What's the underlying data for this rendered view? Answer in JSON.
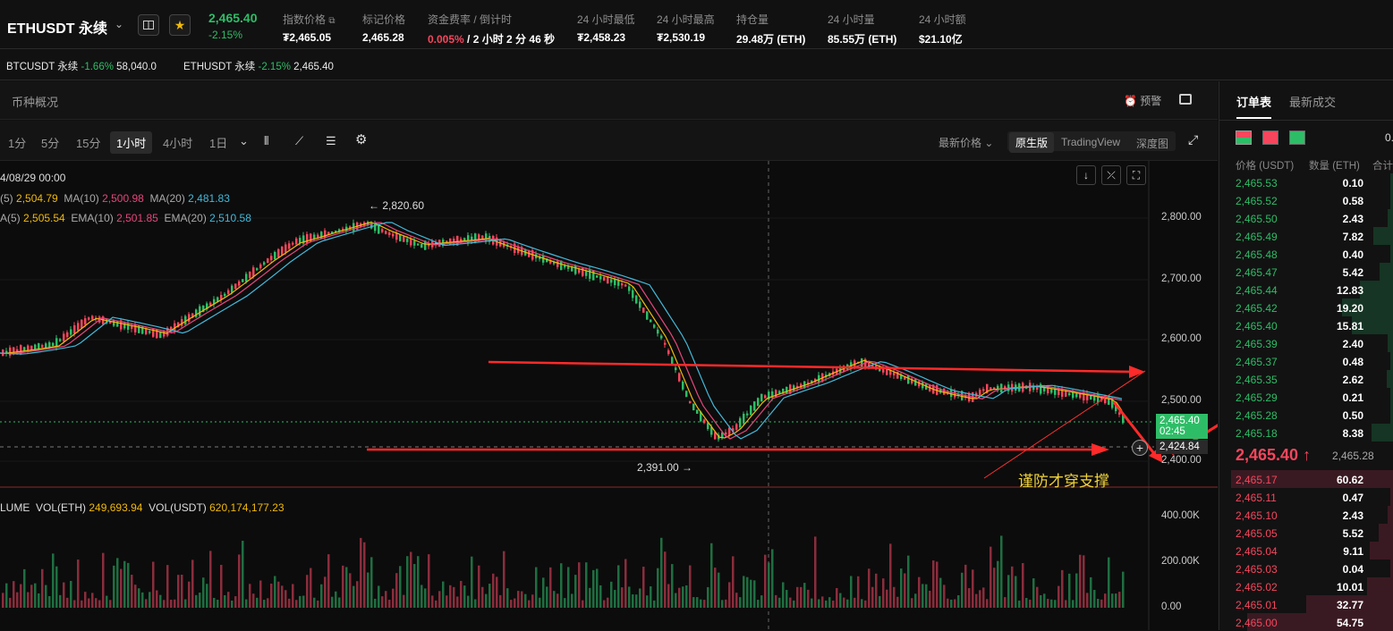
{
  "header": {
    "symbol": "ETHUSDT 永续",
    "last_price": "2,465.40",
    "change": "-2.15%",
    "stats": [
      {
        "label": "指数价格",
        "value": "₮2,465.05"
      },
      {
        "label": "标记价格",
        "value": "2,465.28"
      },
      {
        "label": "资金费率 / 倒计时",
        "value_rate": "0.005%",
        "value_rest": " / 2 小时 2 分 46 秒"
      },
      {
        "label": "24 小时最低",
        "value": "₮2,458.23"
      },
      {
        "label": "24 小时最高",
        "value": "₮2,530.19"
      },
      {
        "label": "持仓量",
        "value": "29.48万 (ETH)"
      },
      {
        "label": "24 小时量",
        "value": "85.55万 (ETH)"
      },
      {
        "label": "24 小时额",
        "value": "$21.10亿"
      }
    ]
  },
  "tickers": [
    {
      "name": "BTCUSDT 永续",
      "change": "-1.66%",
      "price": "58,040.0"
    },
    {
      "name": "ETHUSDT 永续",
      "change": "-2.15%",
      "price": "2,465.40"
    }
  ],
  "overview": {
    "title": "币种概况",
    "alert": "预警"
  },
  "toolbar": {
    "timeframes": [
      "1分",
      "5分",
      "15分",
      "1小时",
      "4小时",
      "1日"
    ],
    "price_mode": "最新价格",
    "views": [
      "原生版",
      "TradingView",
      "深度图"
    ]
  },
  "chart": {
    "date_label": "4/08/29 00:00",
    "ma": [
      {
        "label": "(5)",
        "value": "2,504.79",
        "color": "#f0b90b"
      },
      {
        "label": "MA(10)",
        "value": "2,500.98",
        "color": "#e6467c"
      },
      {
        "label": "MA(20)",
        "value": "2,481.83",
        "color": "#43b8d9"
      }
    ],
    "ema": [
      {
        "label": "A(5)",
        "value": "2,505.54",
        "color": "#f0b90b"
      },
      {
        "label": "EMA(10)",
        "value": "2,501.85",
        "color": "#e6467c"
      },
      {
        "label": "EMA(20)",
        "value": "2,510.58",
        "color": "#43b8d9"
      }
    ],
    "price_ticks": [
      "2,800.00",
      "2,700.00",
      "2,600.00",
      "2,500.00",
      "2,400.00"
    ],
    "high_marker": "2,820.60",
    "low_marker": "2,391.00",
    "current_price": "2,465.40",
    "countdown": "02:45",
    "hover_price": "2,424.84",
    "annotation": "谨防才穿支撑",
    "volume": {
      "label": "LUME",
      "vol_eth_label": "VOL(ETH)",
      "vol_eth": "249,693.94",
      "vol_usdt_label": "VOL(USDT)",
      "vol_usdt": "620,174,177.23"
    },
    "vol_ticks": [
      "400.00K",
      "200.00K",
      "0.00"
    ]
  },
  "orderbook": {
    "tabs": [
      "订单表",
      "最新成交"
    ],
    "top_right": "0.",
    "headers": [
      "价格 (USDT)",
      "数量 (ETH)",
      "合计"
    ],
    "asks": [
      [
        "2,465.53",
        "0.10"
      ],
      [
        "2,465.52",
        "0.58"
      ],
      [
        "2,465.50",
        "2.43"
      ],
      [
        "2,465.49",
        "7.82"
      ],
      [
        "2,465.48",
        "0.40"
      ],
      [
        "2,465.47",
        "5.42"
      ],
      [
        "2,465.44",
        "12.83"
      ],
      [
        "2,465.42",
        "19.20"
      ],
      [
        "2,465.40",
        "15.81"
      ],
      [
        "2,465.39",
        "2.40"
      ],
      [
        "2,465.37",
        "0.48"
      ],
      [
        "2,465.35",
        "2.62"
      ],
      [
        "2,465.29",
        "0.21"
      ],
      [
        "2,465.28",
        "0.50"
      ],
      [
        "2,465.18",
        "8.38"
      ]
    ],
    "mid_price": "2,465.40 ↑",
    "mid_mark": "2,465.28",
    "bids": [
      [
        "2,465.17",
        "60.62"
      ],
      [
        "2,465.11",
        "0.47"
      ],
      [
        "2,465.10",
        "2.43"
      ],
      [
        "2,465.05",
        "5.52"
      ],
      [
        "2,465.04",
        "9.11"
      ],
      [
        "2,465.03",
        "0.04"
      ],
      [
        "2,465.02",
        "10.01"
      ],
      [
        "2,465.01",
        "32.77"
      ],
      [
        "2,465.00",
        "54.75"
      ]
    ]
  }
}
